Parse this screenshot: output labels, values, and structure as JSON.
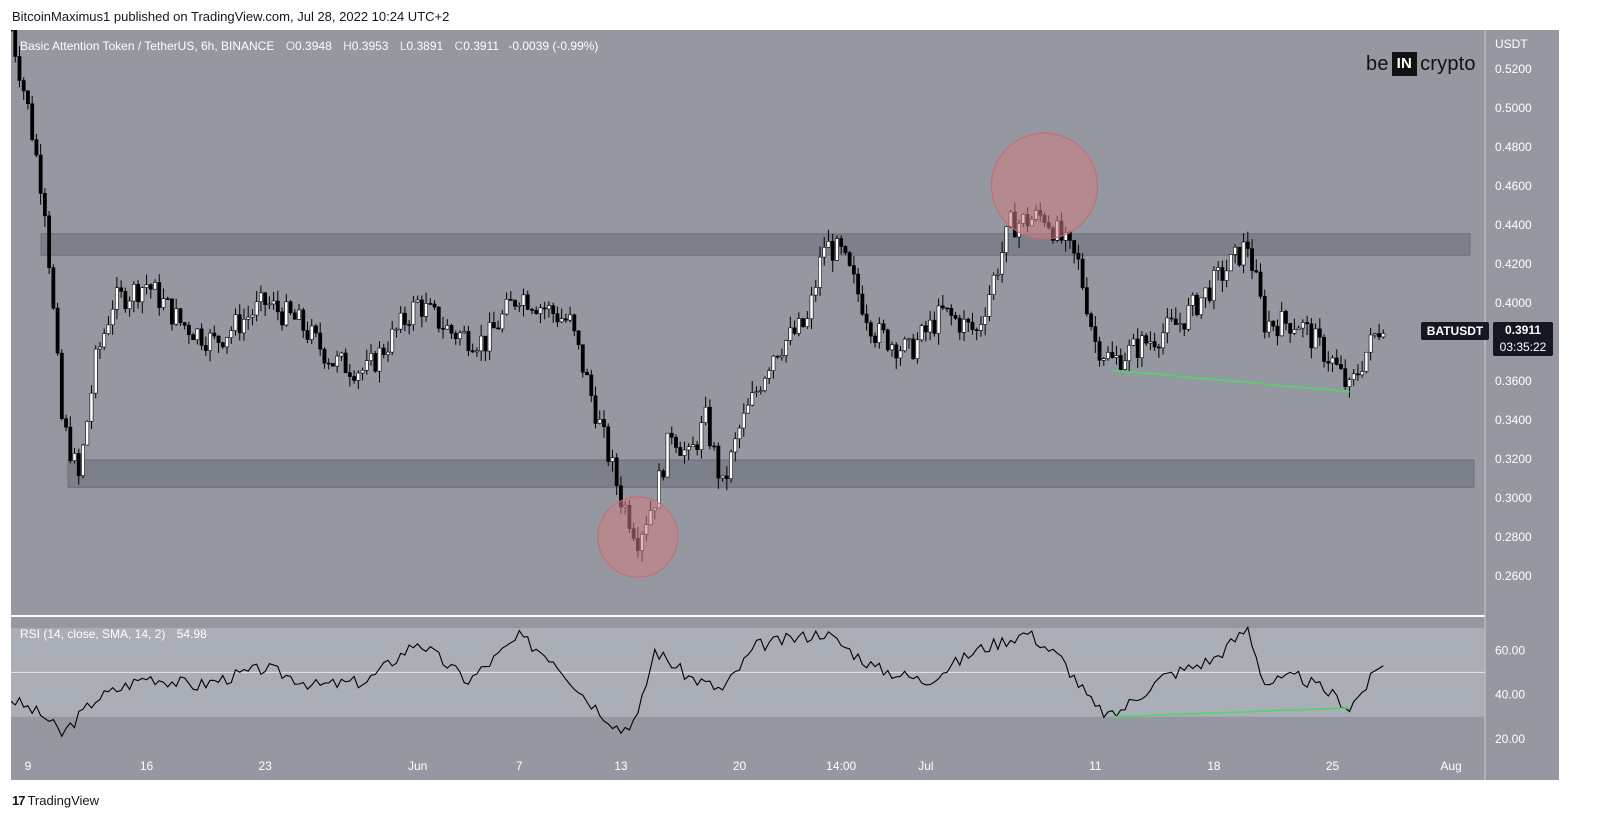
{
  "header": {
    "author": "BitcoinMaximus1",
    "published_text": "published on TradingView.com, Jul 28, 2022 10:24 UTC+2"
  },
  "legend": {
    "symbol": "Basic Attention Token / TetherUS, 6h, BINANCE",
    "o_label": "O",
    "o": "0.3948",
    "h_label": "H",
    "h": "0.3953",
    "l_label": "L",
    "l": "0.3891",
    "c_label": "C",
    "c": "0.3911",
    "change": "-0.0039 (-0.99%)"
  },
  "brand": {
    "left": "be",
    "box": "IN",
    "right": "crypto"
  },
  "price_axis": {
    "currency": "USDT"
  },
  "price_marker": {
    "symbol": "BATUSDT",
    "price": "0.3911",
    "countdown": "03:35:22"
  },
  "rsi": {
    "label": "RSI (14, close, SMA, 14, 2)",
    "value": "54.98"
  },
  "footer": {
    "brand": "TradingView"
  },
  "colors": {
    "chart_bg": "#9598a1",
    "zone": "#787b86",
    "candle": "#000000",
    "circle": "#d07e84",
    "divergence": "#4cd964",
    "rsi_band": "#b2b5be",
    "axis_bg": "#9598a1"
  },
  "chart_data": [
    {
      "type": "candlestick",
      "title": "Basic Attention Token / TetherUS, 6h, BINANCE",
      "y_axis_label": "USDT",
      "ylim": [
        0.24,
        0.54
      ],
      "y_ticks": [
        "0.2600",
        "0.2800",
        "0.3000",
        "0.3200",
        "0.3400",
        "0.3600",
        "0.3800",
        "0.4000",
        "0.4200",
        "0.4400",
        "0.4600",
        "0.4800",
        "0.5000",
        "0.5200"
      ],
      "x_ticks": [
        "9",
        "16",
        "23",
        "Jun",
        "7",
        "13",
        "20",
        "14:00",
        "Jul",
        "11",
        "18",
        "25",
        "Aug"
      ],
      "x_tick_dates": [
        "2022-05-09",
        "2022-05-16",
        "2022-05-23",
        "2022-06-01",
        "2022-06-07",
        "2022-06-13",
        "2022-06-20",
        "2022-06-26",
        "2022-07-01",
        "2022-07-11",
        "2022-07-18",
        "2022-07-25",
        "2022-08-01"
      ],
      "x_range": [
        "2022-05-08",
        "2022-08-03"
      ],
      "closes_approx": [
        {
          "date": "2022-05-08",
          "close": 0.54
        },
        {
          "date": "2022-05-09",
          "close": 0.5
        },
        {
          "date": "2022-05-10",
          "close": 0.45
        },
        {
          "date": "2022-05-11",
          "close": 0.34
        },
        {
          "date": "2022-05-12",
          "close": 0.31
        },
        {
          "date": "2022-05-13",
          "close": 0.37
        },
        {
          "date": "2022-05-14",
          "close": 0.4
        },
        {
          "date": "2022-05-16",
          "close": 0.41
        },
        {
          "date": "2022-05-18",
          "close": 0.39
        },
        {
          "date": "2022-05-20",
          "close": 0.38
        },
        {
          "date": "2022-05-23",
          "close": 0.4
        },
        {
          "date": "2022-05-25",
          "close": 0.39
        },
        {
          "date": "2022-05-27",
          "close": 0.37
        },
        {
          "date": "2022-05-29",
          "close": 0.365
        },
        {
          "date": "2022-06-01",
          "close": 0.4
        },
        {
          "date": "2022-06-03",
          "close": 0.385
        },
        {
          "date": "2022-06-05",
          "close": 0.38
        },
        {
          "date": "2022-06-07",
          "close": 0.405
        },
        {
          "date": "2022-06-09",
          "close": 0.395
        },
        {
          "date": "2022-06-10",
          "close": 0.39
        },
        {
          "date": "2022-06-11",
          "close": 0.36
        },
        {
          "date": "2022-06-12",
          "close": 0.33
        },
        {
          "date": "2022-06-13",
          "close": 0.3
        },
        {
          "date": "2022-06-14",
          "close": 0.28
        },
        {
          "date": "2022-06-15",
          "close": 0.3
        },
        {
          "date": "2022-06-16",
          "close": 0.335
        },
        {
          "date": "2022-06-17",
          "close": 0.32
        },
        {
          "date": "2022-06-18",
          "close": 0.34
        },
        {
          "date": "2022-06-19",
          "close": 0.305
        },
        {
          "date": "2022-06-20",
          "close": 0.335
        },
        {
          "date": "2022-06-22",
          "close": 0.375
        },
        {
          "date": "2022-06-24",
          "close": 0.39
        },
        {
          "date": "2022-06-25",
          "close": 0.43
        },
        {
          "date": "2022-06-26",
          "close": 0.425
        },
        {
          "date": "2022-06-28",
          "close": 0.385
        },
        {
          "date": "2022-06-30",
          "close": 0.375
        },
        {
          "date": "2022-07-02",
          "close": 0.395
        },
        {
          "date": "2022-07-04",
          "close": 0.385
        },
        {
          "date": "2022-07-06",
          "close": 0.44
        },
        {
          "date": "2022-07-08",
          "close": 0.445
        },
        {
          "date": "2022-07-10",
          "close": 0.42
        },
        {
          "date": "2022-07-11",
          "close": 0.38
        },
        {
          "date": "2022-07-12",
          "close": 0.37
        },
        {
          "date": "2022-07-14",
          "close": 0.38
        },
        {
          "date": "2022-07-16",
          "close": 0.39
        },
        {
          "date": "2022-07-18",
          "close": 0.41
        },
        {
          "date": "2022-07-20",
          "close": 0.43
        },
        {
          "date": "2022-07-21",
          "close": 0.39
        },
        {
          "date": "2022-07-23",
          "close": 0.39
        },
        {
          "date": "2022-07-25",
          "close": 0.37
        },
        {
          "date": "2022-07-26",
          "close": 0.355
        },
        {
          "date": "2022-07-27",
          "close": 0.375
        },
        {
          "date": "2022-07-28",
          "close": 0.3911
        }
      ],
      "zones": [
        {
          "from": 0.4245,
          "to": 0.4355
        },
        {
          "from": 0.3055,
          "to": 0.3195
        }
      ],
      "highlights": [
        {
          "date": "2022-06-14",
          "price": 0.28
        },
        {
          "date": "2022-07-08",
          "price": 0.46
        }
      ],
      "divergence_line": [
        {
          "date": "2022-07-12",
          "price": 0.3655
        },
        {
          "date": "2022-07-26",
          "price": 0.3545
        }
      ]
    },
    {
      "type": "line",
      "title": "RSI (14, close, SMA, 14, 2)",
      "ylim": [
        15,
        75
      ],
      "y_ticks": [
        "20.00",
        "40.00",
        "60.00"
      ],
      "band": [
        30,
        70
      ],
      "midline": 50,
      "last_value": 54.98,
      "values_approx": [
        {
          "date": "2022-05-08",
          "value": 38
        },
        {
          "date": "2022-05-10",
          "value": 30
        },
        {
          "date": "2022-05-11",
          "value": 22
        },
        {
          "date": "2022-05-13",
          "value": 38
        },
        {
          "date": "2022-05-16",
          "value": 48
        },
        {
          "date": "2022-05-19",
          "value": 44
        },
        {
          "date": "2022-05-23",
          "value": 52
        },
        {
          "date": "2022-05-26",
          "value": 44
        },
        {
          "date": "2022-05-29",
          "value": 46
        },
        {
          "date": "2022-06-01",
          "value": 64
        },
        {
          "date": "2022-06-04",
          "value": 46
        },
        {
          "date": "2022-06-07",
          "value": 66
        },
        {
          "date": "2022-06-09",
          "value": 56
        },
        {
          "date": "2022-06-11",
          "value": 38
        },
        {
          "date": "2022-06-13",
          "value": 24
        },
        {
          "date": "2022-06-14",
          "value": 30
        },
        {
          "date": "2022-06-15",
          "value": 60
        },
        {
          "date": "2022-06-17",
          "value": 48
        },
        {
          "date": "2022-06-19",
          "value": 42
        },
        {
          "date": "2022-06-21",
          "value": 62
        },
        {
          "date": "2022-06-25",
          "value": 68
        },
        {
          "date": "2022-06-28",
          "value": 52
        },
        {
          "date": "2022-07-01",
          "value": 46
        },
        {
          "date": "2022-07-04",
          "value": 60
        },
        {
          "date": "2022-07-07",
          "value": 68
        },
        {
          "date": "2022-07-09",
          "value": 56
        },
        {
          "date": "2022-07-11",
          "value": 34
        },
        {
          "date": "2022-07-12",
          "value": 30
        },
        {
          "date": "2022-07-15",
          "value": 48
        },
        {
          "date": "2022-07-18",
          "value": 56
        },
        {
          "date": "2022-07-20",
          "value": 70
        },
        {
          "date": "2022-07-21",
          "value": 45
        },
        {
          "date": "2022-07-23",
          "value": 48
        },
        {
          "date": "2022-07-25",
          "value": 40
        },
        {
          "date": "2022-07-26",
          "value": 34
        },
        {
          "date": "2022-07-27",
          "value": 44
        },
        {
          "date": "2022-07-28",
          "value": 54.98
        }
      ],
      "divergence_line": [
        {
          "date": "2022-07-12",
          "value": 30
        },
        {
          "date": "2022-07-26",
          "value": 34
        }
      ]
    }
  ]
}
